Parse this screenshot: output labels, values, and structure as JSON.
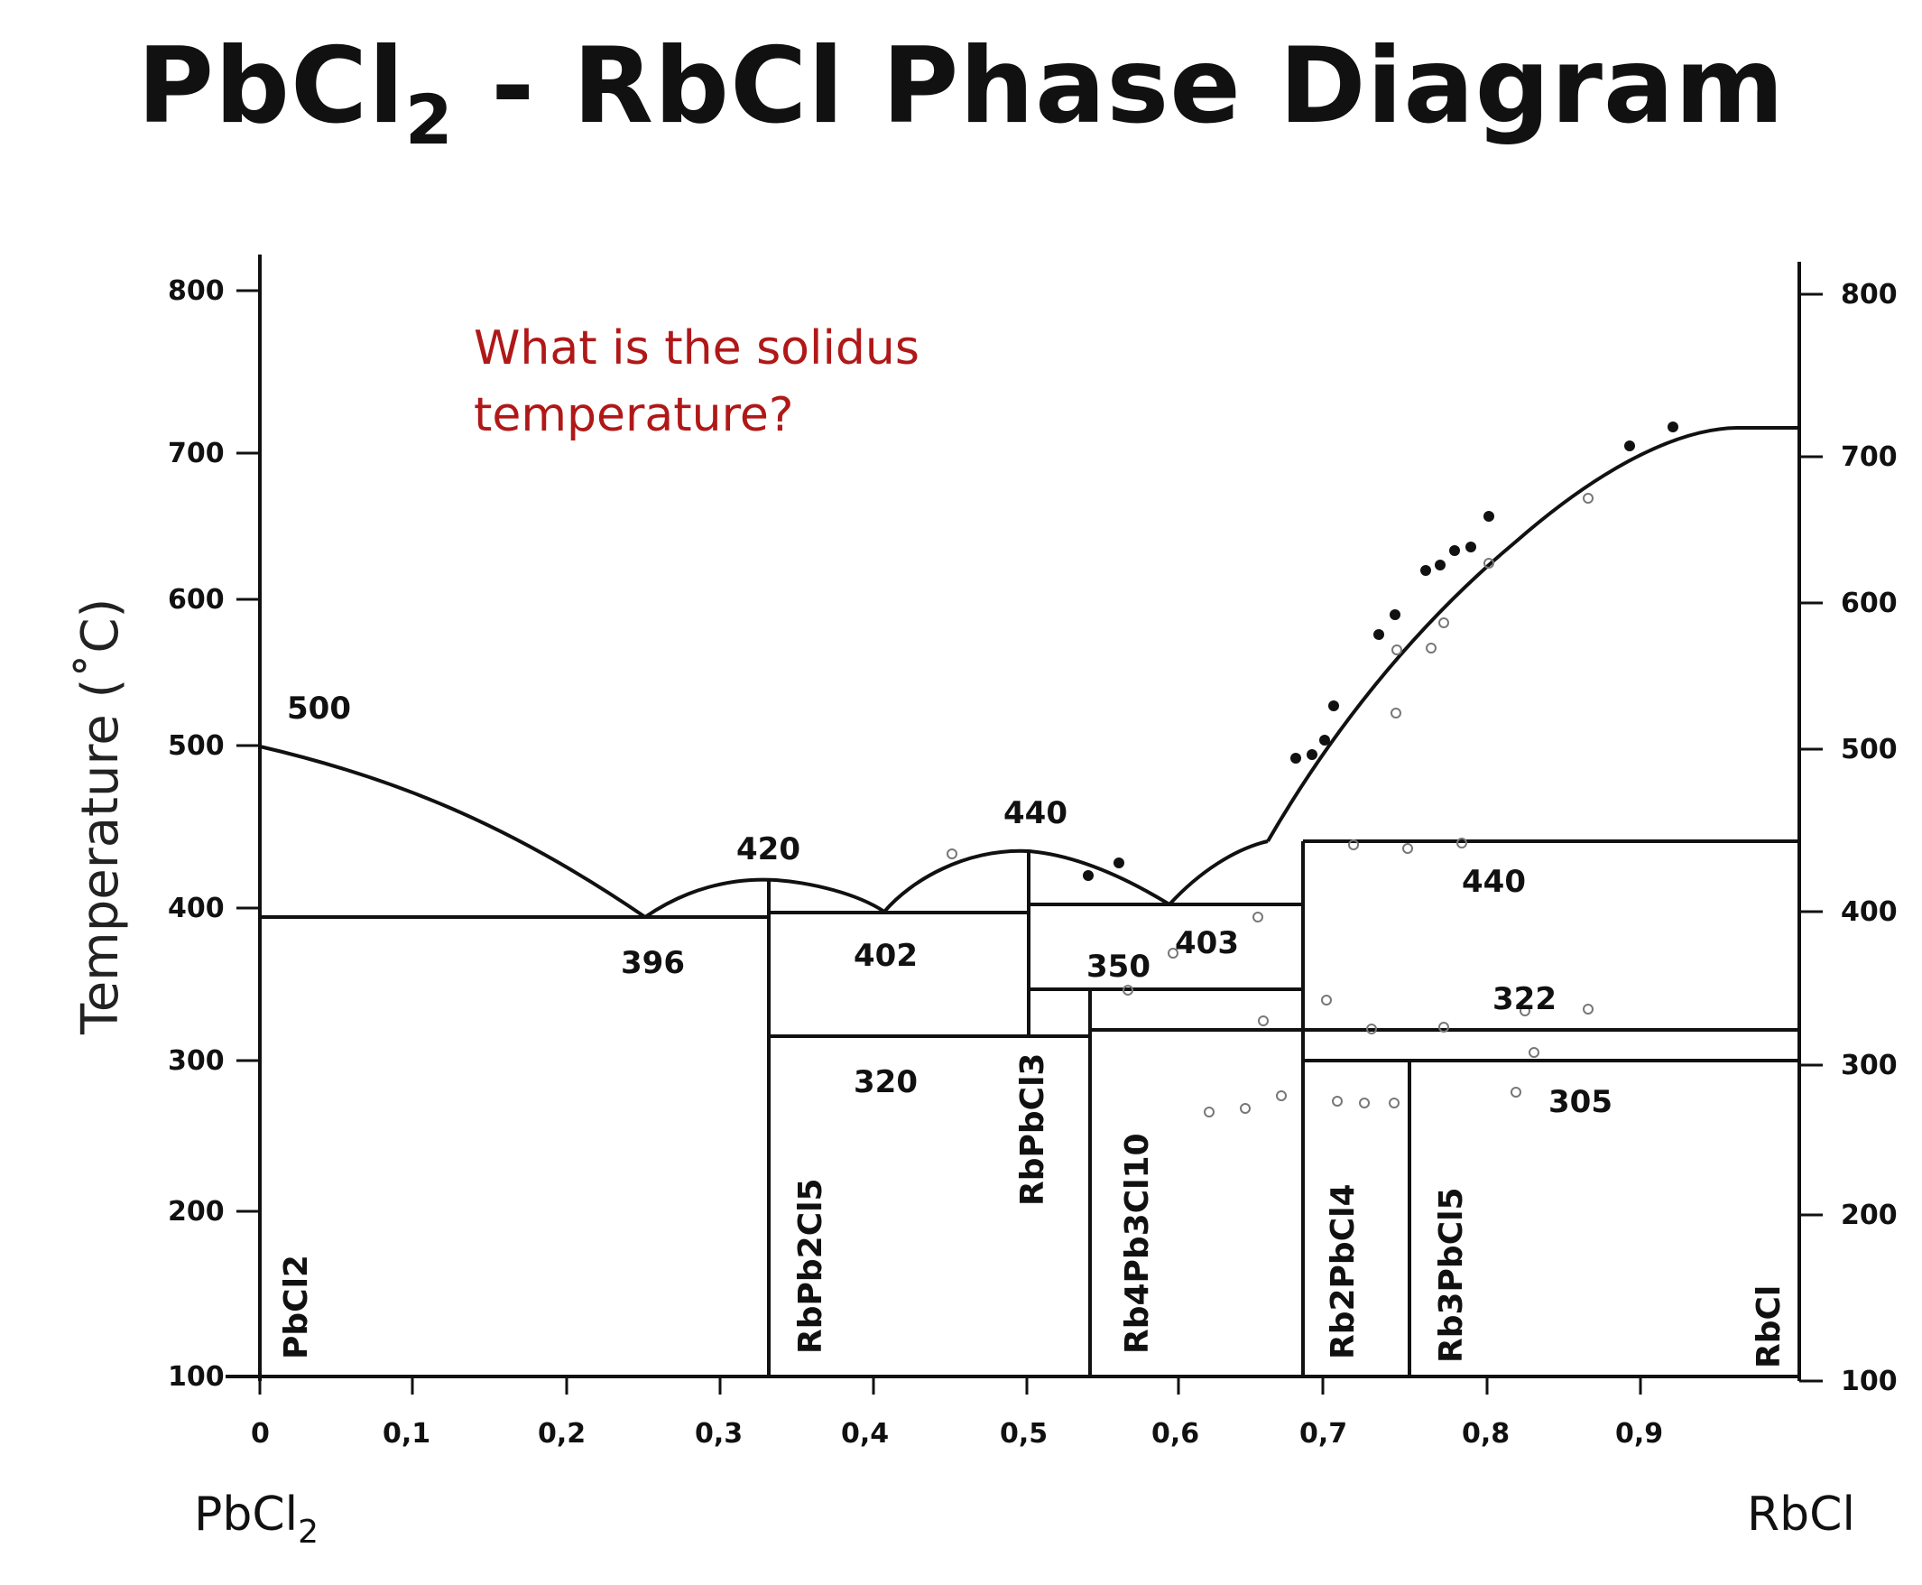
{
  "title": {
    "main_before": "PbCl",
    "main_sub": "2",
    "main_after": " - RbCl Phase Diagram"
  },
  "question": {
    "line1": "What is the solidus",
    "line2": "temperature?"
  },
  "y_axis": {
    "title": "Temperature (˚C)",
    "left_ticks": [
      "800",
      "700",
      "600",
      "500",
      "400",
      "300",
      "200",
      "100"
    ],
    "right_ticks": [
      "800",
      "700",
      "600",
      "500",
      "400",
      "300",
      "200",
      "100"
    ]
  },
  "x_axis": {
    "ticks": [
      "0",
      "0,1",
      "0,2",
      "0,3",
      "0,4",
      "0,5",
      "0,6",
      "0,7",
      "0,8",
      "0,9"
    ]
  },
  "components": {
    "left": "PbCl",
    "left_sub": "2",
    "right": "RbCl"
  },
  "temperature_labels": [
    "500",
    "396",
    "420",
    "402",
    "440",
    "350",
    "403",
    "440",
    "322",
    "320",
    "305"
  ],
  "phases": [
    "PbCl2",
    "RbPb2Cl5",
    "RbPbCl3",
    "Rb4Pb3Cl10",
    "Rb2PbCl4",
    "Rb3PbCl5",
    "RbCl"
  ]
}
